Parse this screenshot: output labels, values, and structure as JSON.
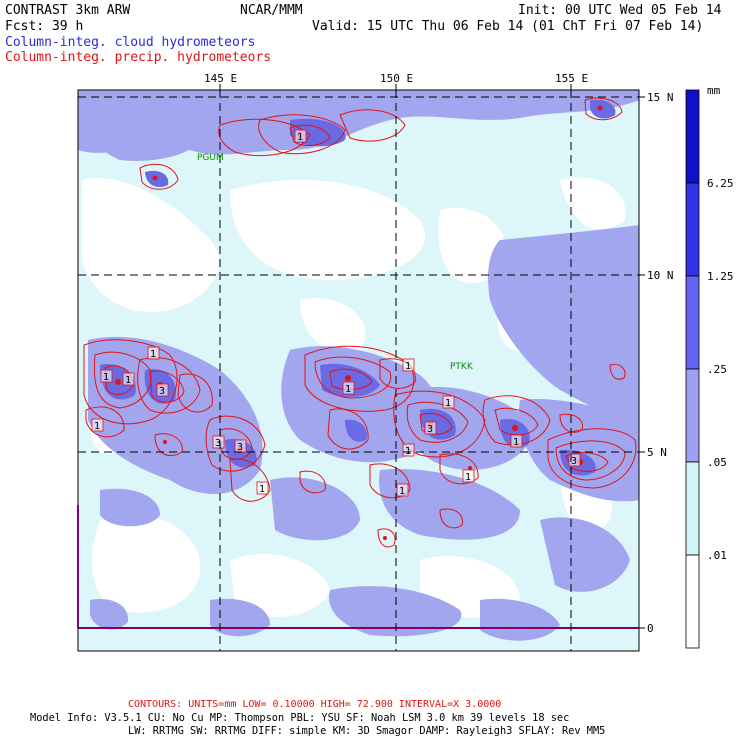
{
  "header": {
    "model": "CONTRAST  3km ARW",
    "org": "NCAR/MMM",
    "init": "Init: 00 UTC Wed 05 Feb 14",
    "fcst": "Fcst:   39 h",
    "valid": "Valid: 15 UTC Thu 06 Feb 14 (01 ChT Fri 07 Feb 14)",
    "field1": "Column-integ. cloud hydrometeors",
    "field2": "Column-integ. precip. hydrometeors"
  },
  "axes": {
    "lon_labels": [
      "145 E",
      "150 E",
      "155 E"
    ],
    "lat_labels": [
      "15 N",
      "10 N",
      "5 N",
      "0"
    ]
  },
  "stations": [
    "PGUM",
    "PTKK"
  ],
  "contour_labels": [
    "1",
    "1",
    "3",
    "1",
    "1",
    "3",
    "1",
    "1",
    "1",
    "1",
    "1",
    "1",
    "3",
    "1",
    "3",
    "1",
    "3",
    "1"
  ],
  "colorbar": {
    "units": "mm",
    "labels": [
      "6.25",
      "1.25",
      ".25",
      ".05",
      ".01"
    ],
    "colors": [
      "#1010c8",
      "#3232e6",
      "#6464f0",
      "#9ea0f2",
      "#d2f4f8",
      "#ffffff"
    ]
  },
  "colors": {
    "cloud_light": "#ddf6fa",
    "cloud_mid": "#a2a6ee",
    "cloud_dark": "#6a6ae4",
    "precip": "#e01414",
    "station": "#0a8a0a"
  },
  "footer": {
    "contours": "CONTOURS:  UNITS=mm  LOW= 0.10000      HIGH=  72.900      INTERVAL=X  3.0000",
    "model_info_1": "Model Info: V3.5.1    CU: No Cu      MP: Thompson     PBL: YSU       SF: Noah LSM     3.0 km   39 levels    18 sec",
    "model_info_2": "LW: RRTMG    SW: RRTMG   DIFF: simple KM: 3D Smagor DAMP: Rayleigh3   SFLAY: Rev MM5"
  }
}
